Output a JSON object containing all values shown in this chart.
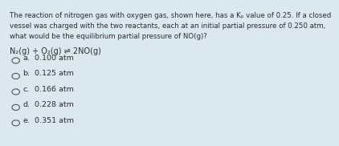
{
  "bg_color": "#dce8f0",
  "text_color": "#2c2c2c",
  "question_lines": [
    "The reaction of nitrogen gas with oxygen gas, shown here, has a Kₚ value of 0.25. If a closed",
    "vessel was charged with the two reactants, each at an initial partial pressure of 0.250 atm,",
    "what would be the equilibrium partial pressure of NO(g)?",
    "N₂(g) + O₂(g) ⇌ 2NO(g)"
  ],
  "options": [
    {
      "label": "a.",
      "text": "0.100 atm"
    },
    {
      "label": "b.",
      "text": "0.125 atm"
    },
    {
      "label": "c.",
      "text": "0.166 atm"
    },
    {
      "label": "d.",
      "text": "0.228 atm"
    },
    {
      "label": "e.",
      "text": "0.351 atm"
    }
  ],
  "font_size_question": 6.2,
  "font_size_options": 6.8,
  "font_size_equation": 7.0
}
